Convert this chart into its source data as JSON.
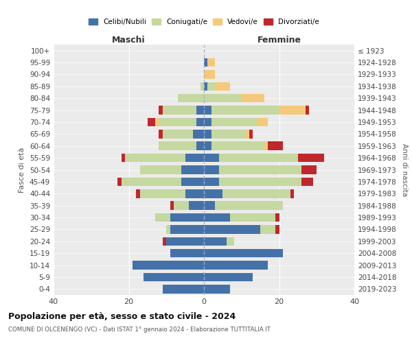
{
  "age_groups": [
    "100+",
    "95-99",
    "90-94",
    "85-89",
    "80-84",
    "75-79",
    "70-74",
    "65-69",
    "60-64",
    "55-59",
    "50-54",
    "45-49",
    "40-44",
    "35-39",
    "30-34",
    "25-29",
    "20-24",
    "15-19",
    "10-14",
    "5-9",
    "0-4"
  ],
  "birth_years": [
    "≤ 1923",
    "1924-1928",
    "1929-1933",
    "1934-1938",
    "1939-1943",
    "1944-1948",
    "1949-1953",
    "1954-1958",
    "1959-1963",
    "1964-1968",
    "1969-1973",
    "1974-1978",
    "1979-1983",
    "1984-1988",
    "1989-1993",
    "1994-1998",
    "1999-2003",
    "2004-2008",
    "2009-2013",
    "2014-2018",
    "2019-2023"
  ],
  "colors": {
    "celibi": "#4472a8",
    "coniugati": "#c5d8a0",
    "vedovi": "#f5c97a",
    "divorziati": "#c0272d"
  },
  "maschi": {
    "celibi": [
      0,
      0,
      0,
      0,
      0,
      2,
      2,
      3,
      2,
      5,
      6,
      6,
      5,
      4,
      9,
      9,
      10,
      9,
      19,
      16,
      11
    ],
    "coniugati": [
      0,
      0,
      0,
      1,
      7,
      9,
      10,
      8,
      10,
      16,
      11,
      16,
      12,
      4,
      4,
      1,
      0,
      0,
      0,
      0,
      0
    ],
    "vedovi": [
      0,
      0,
      0,
      0,
      0,
      0,
      1,
      0,
      0,
      0,
      0,
      0,
      0,
      0,
      0,
      0,
      0,
      0,
      0,
      0,
      0
    ],
    "divorziati": [
      0,
      0,
      0,
      0,
      0,
      1,
      2,
      1,
      0,
      1,
      0,
      1,
      1,
      1,
      0,
      0,
      1,
      0,
      0,
      0,
      0
    ]
  },
  "femmine": {
    "celibi": [
      0,
      1,
      0,
      1,
      0,
      2,
      2,
      2,
      2,
      4,
      4,
      4,
      5,
      3,
      7,
      15,
      6,
      21,
      17,
      13,
      7
    ],
    "coniugati": [
      0,
      0,
      0,
      2,
      10,
      18,
      12,
      9,
      14,
      21,
      22,
      22,
      18,
      18,
      12,
      4,
      2,
      0,
      0,
      0,
      0
    ],
    "vedovi": [
      0,
      2,
      3,
      4,
      6,
      7,
      3,
      1,
      1,
      0,
      0,
      0,
      0,
      0,
      0,
      0,
      0,
      0,
      0,
      0,
      0
    ],
    "divorziati": [
      0,
      0,
      0,
      0,
      0,
      1,
      0,
      1,
      4,
      7,
      4,
      3,
      1,
      0,
      1,
      1,
      0,
      0,
      0,
      0,
      0
    ]
  },
  "title": "Popolazione per età, sesso e stato civile - 2024",
  "subtitle": "COMUNE DI OLCENENGO (VC) - Dati ISTAT 1° gennaio 2024 - Elaborazione TUTTITALIA.IT",
  "xlabel_left": "Maschi",
  "xlabel_right": "Femmine",
  "ylabel_left": "Fasce di età",
  "ylabel_right": "Anni di nascita",
  "xlim": 40,
  "legend_labels": [
    "Celibi/Nubili",
    "Coniugati/e",
    "Vedovi/e",
    "Divorziati/e"
  ]
}
